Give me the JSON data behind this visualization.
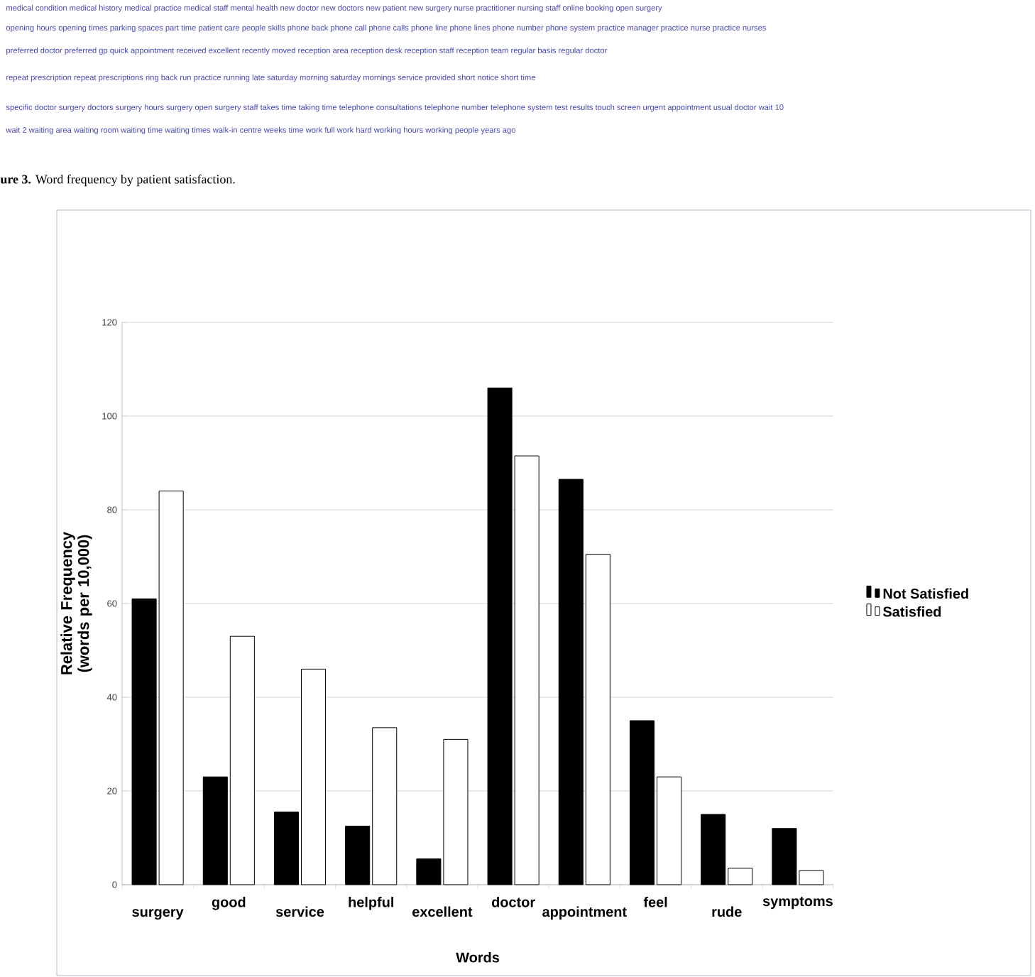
{
  "chart_data": {
    "type": "bar",
    "categories": [
      "surgery",
      "good",
      "service",
      "helpful",
      "excellent",
      "doctor",
      "appointment",
      "feel",
      "rude",
      "symptoms"
    ],
    "series": [
      {
        "name": "Not Satisfied",
        "color": "#000000",
        "values": [
          61,
          23,
          15.5,
          12.5,
          5.5,
          106,
          86.5,
          35,
          15,
          12
        ]
      },
      {
        "name": "Satisfied",
        "color": "#ffffff",
        "values": [
          84,
          53,
          46,
          33.5,
          31,
          91.5,
          70.5,
          23,
          3.5,
          3
        ]
      }
    ],
    "xlabel": "Words",
    "ylabel": "Relative Frequency (words per 10,000)",
    "ylim": [
      0,
      120
    ],
    "yticks": [
      0,
      20,
      40,
      60,
      80,
      100,
      120
    ],
    "grid": "y",
    "legend": "right",
    "annotations": [
      "medical condition   medical history   medical practice   medical staff   mental health   new doctor   new doctors   new patient   new surgery   nurse practitioner   nursing staff   online booking   open surgery",
      "opening hours   opening times   parking spaces   part time   patient care   people skills   phone back   phone call   phone calls   phone line   phone lines   phone number   phone system   practice manager   practice nurse   practice nurses",
      "preferred doctor   preferred gp   quick appointment   received excellent   recently moved   reception area   reception desk   reception staff   reception team   regular basis   regular doctor",
      "repeat prescription   repeat prescriptions   ring back   run practice   running late   saturday morning   saturday mornings   service provided   short notice   short time",
      "specific doctor   surgery doctors   surgery hours   surgery open   surgery staff   takes time   taking time   telephone consultations   telephone number   telephone system   test results   touch screen   urgent appointment   usual doctor   wait 10",
      "wait 2   waiting area   waiting room   waiting time   waiting times   walk-in centre   weeks time   work full   work hard   working hours   working people   years ago",
      "**ure 3.**  Word frequency by patient satisfaction."
    ]
  }
}
